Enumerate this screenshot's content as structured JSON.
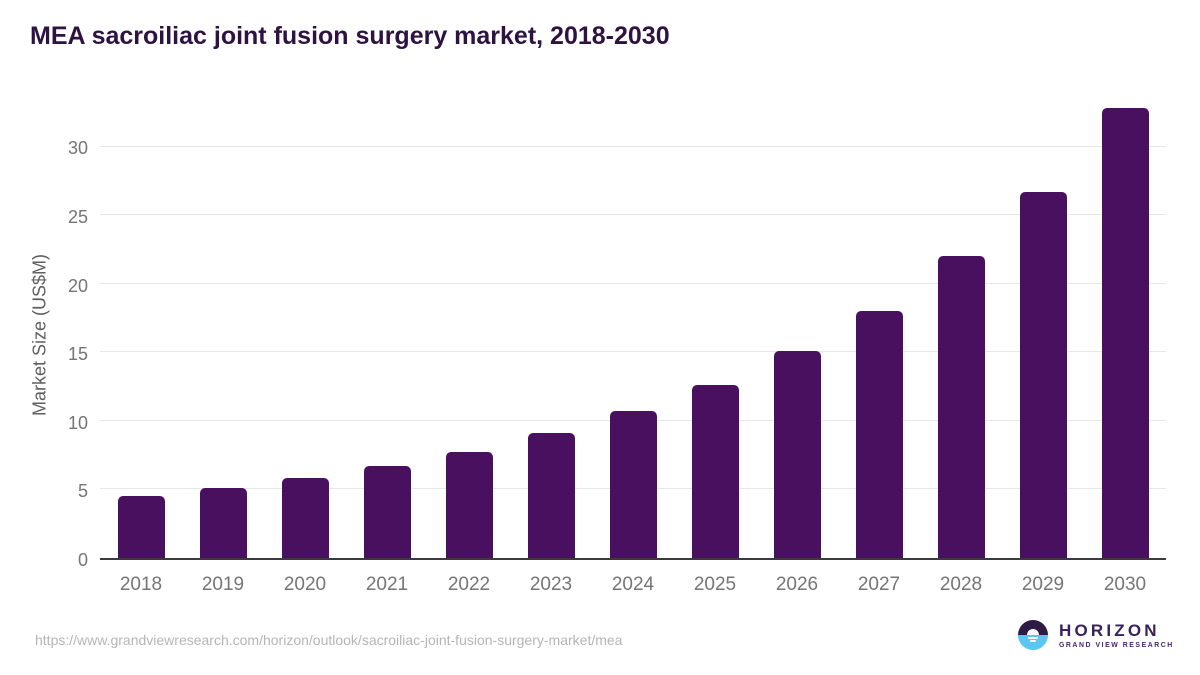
{
  "title": "MEA sacroiliac joint fusion surgery market, 2018-2030",
  "chart_data": {
    "type": "bar",
    "title": "MEA sacroiliac joint fusion surgery market, 2018-2030",
    "categories": [
      "2018",
      "2019",
      "2020",
      "2021",
      "2022",
      "2023",
      "2024",
      "2025",
      "2026",
      "2027",
      "2028",
      "2029",
      "2030"
    ],
    "values": [
      4.5,
      5.1,
      5.8,
      6.7,
      7.7,
      9.1,
      10.7,
      12.6,
      15.1,
      18.0,
      22.0,
      26.7,
      32.8
    ],
    "xlabel": "",
    "ylabel": "Market Size (US$M)",
    "yticks": [
      0,
      5,
      10,
      15,
      20,
      25,
      30
    ],
    "ylim": [
      0,
      33.9
    ],
    "grid": true,
    "legend_position": "none",
    "bar_color": "#4a1060"
  },
  "colors": {
    "title": "#2d1242",
    "bar": "#4a1060",
    "gridline": "#e7e7e7",
    "axis_line": "#3b3b3b",
    "tick_label": "#757575",
    "url_text": "#b5b5b5",
    "logo_purple": "#38215c",
    "logo_blue": "#5ac6f2"
  },
  "footer": {
    "source_url": "https://www.grandviewresearch.com/horizon/outlook/sacroiliac-joint-fusion-surgery-market/mea",
    "logo": {
      "brand": "HORIZON",
      "subtitle": "GRAND VIEW RESEARCH",
      "icon": "horizon-sunset-icon"
    }
  }
}
